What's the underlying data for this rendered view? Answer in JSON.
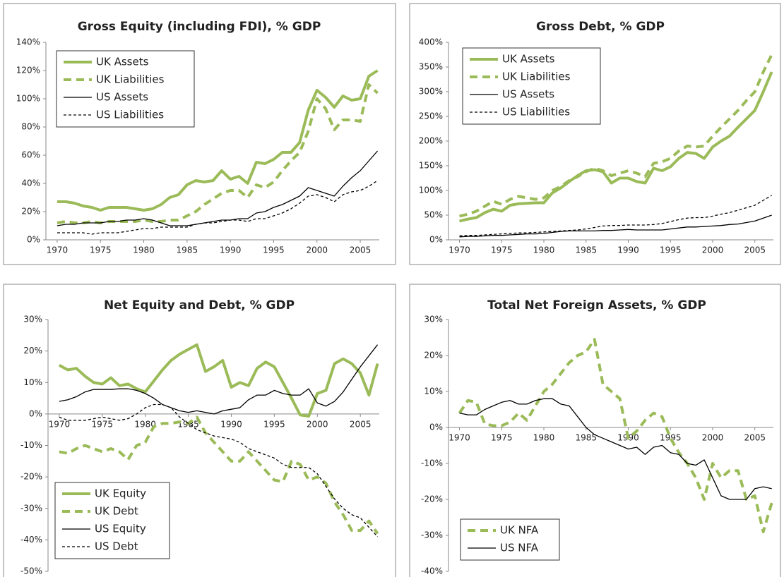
{
  "chart_data": [
    {
      "type": "line",
      "title": "Gross Equity (including FDI), % GDP",
      "x": [
        1970,
        1971,
        1972,
        1973,
        1974,
        1975,
        1976,
        1977,
        1978,
        1979,
        1980,
        1981,
        1982,
        1983,
        1984,
        1985,
        1986,
        1987,
        1988,
        1989,
        1990,
        1991,
        1992,
        1993,
        1994,
        1995,
        1996,
        1997,
        1998,
        1999,
        2000,
        2001,
        2002,
        2003,
        2004,
        2005,
        2006,
        2007
      ],
      "xlim": [
        1968.7,
        2007.2
      ],
      "xticks": [
        1970,
        1975,
        1980,
        1985,
        1990,
        1995,
        2000,
        2005
      ],
      "ylim": [
        0,
        140
      ],
      "yticks": [
        {
          "value": 0,
          "label": "0%"
        },
        {
          "value": 20,
          "label": "20%"
        },
        {
          "value": 40,
          "label": "40%"
        },
        {
          "value": 60,
          "label": "60%"
        },
        {
          "value": 80,
          "label": "80%"
        },
        {
          "value": 100,
          "label": "100%"
        },
        {
          "value": 120,
          "label": "120%"
        },
        {
          "value": 140,
          "label": "140%"
        }
      ],
      "legend": "upper left",
      "series": [
        {
          "name": "UK Assets",
          "color": "#9bbb59",
          "dashed": false,
          "values": [
            27,
            27,
            26,
            24,
            23,
            21,
            23,
            23,
            23,
            22,
            21,
            22,
            25,
            30,
            32,
            39,
            42,
            41,
            42,
            49,
            43,
            45,
            40,
            55,
            54,
            57,
            62,
            62,
            69,
            92,
            106,
            101,
            94,
            102,
            99,
            100,
            116,
            120
          ]
        },
        {
          "name": "UK Liabilities",
          "color": "#9bbb59",
          "dashed": true,
          "values": [
            12,
            13,
            12,
            12,
            13,
            12,
            13,
            13,
            13,
            13,
            14,
            13,
            13,
            14,
            14,
            17,
            20,
            25,
            29,
            33,
            35,
            35,
            30,
            39,
            37,
            41,
            49,
            56,
            62,
            77,
            100,
            93,
            78,
            85,
            85,
            84,
            110,
            104
          ]
        },
        {
          "name": "US Assets",
          "color": "#000000",
          "dashed": false,
          "values": [
            10,
            11,
            11,
            12,
            12,
            12,
            13,
            13,
            14,
            14,
            15,
            14,
            12,
            10,
            10,
            10,
            11,
            12,
            13,
            14,
            14,
            15,
            15,
            19,
            20,
            23,
            25,
            28,
            31,
            37,
            35,
            33,
            31,
            38,
            44,
            49,
            56,
            63
          ]
        },
        {
          "name": "US Liabilities",
          "color": "#000000",
          "dashed": true,
          "values": [
            5,
            5,
            5,
            5,
            4,
            5,
            5,
            5,
            6,
            7,
            8,
            8,
            9,
            9,
            9,
            9,
            11,
            12,
            12,
            13,
            14,
            14,
            13,
            15,
            15,
            17,
            19,
            22,
            26,
            31,
            32,
            30,
            27,
            32,
            34,
            35,
            38,
            42
          ]
        }
      ]
    },
    {
      "type": "line",
      "title": "Gross Debt, % GDP",
      "x": [
        1970,
        1971,
        1972,
        1973,
        1974,
        1975,
        1976,
        1977,
        1978,
        1979,
        1980,
        1981,
        1982,
        1983,
        1984,
        1985,
        1986,
        1987,
        1988,
        1989,
        1990,
        1991,
        1992,
        1993,
        1994,
        1995,
        1996,
        1997,
        1998,
        1999,
        2000,
        2001,
        2002,
        2003,
        2004,
        2005,
        2006,
        2007
      ],
      "xlim": [
        1968.7,
        2007.2
      ],
      "xticks": [
        1970,
        1975,
        1980,
        1985,
        1990,
        1995,
        2000,
        2005
      ],
      "ylim": [
        0,
        400
      ],
      "yticks": [
        {
          "value": 0,
          "label": "0%"
        },
        {
          "value": 50,
          "label": "50%"
        },
        {
          "value": 100,
          "label": "100%"
        },
        {
          "value": 150,
          "label": "150%"
        },
        {
          "value": 200,
          "label": "200%"
        },
        {
          "value": 250,
          "label": "250%"
        },
        {
          "value": 300,
          "label": "300%"
        },
        {
          "value": 350,
          "label": "350%"
        },
        {
          "value": 400,
          "label": "400%"
        }
      ],
      "legend": "upper left",
      "series": [
        {
          "name": "UK Assets",
          "color": "#9bbb59",
          "dashed": false,
          "values": [
            38,
            42,
            45,
            55,
            62,
            58,
            70,
            73,
            74,
            75,
            75,
            95,
            105,
            118,
            130,
            140,
            142,
            138,
            115,
            125,
            125,
            118,
            115,
            145,
            140,
            148,
            165,
            177,
            175,
            165,
            188,
            200,
            210,
            228,
            245,
            262,
            300,
            340
          ]
        },
        {
          "name": "UK Liabilities",
          "color": "#9bbb59",
          "dashed": true,
          "values": [
            48,
            52,
            58,
            68,
            78,
            72,
            82,
            88,
            85,
            82,
            85,
            100,
            108,
            120,
            128,
            138,
            145,
            140,
            130,
            135,
            140,
            135,
            128,
            155,
            158,
            165,
            180,
            190,
            188,
            190,
            210,
            228,
            245,
            262,
            282,
            300,
            340,
            375
          ]
        },
        {
          "name": "US Assets",
          "color": "#000000",
          "dashed": false,
          "values": [
            6,
            7,
            7,
            8,
            9,
            9,
            10,
            11,
            12,
            12,
            13,
            15,
            17,
            18,
            18,
            18,
            18,
            19,
            19,
            20,
            21,
            20,
            20,
            20,
            20,
            22,
            24,
            26,
            26,
            27,
            28,
            29,
            31,
            32,
            35,
            38,
            44,
            50
          ]
        },
        {
          "name": "US Liabilities",
          "color": "#000000",
          "dashed": true,
          "values": [
            8,
            9,
            9,
            10,
            11,
            12,
            13,
            14,
            14,
            15,
            16,
            17,
            18,
            19,
            20,
            22,
            25,
            28,
            29,
            29,
            30,
            30,
            30,
            31,
            33,
            37,
            41,
            44,
            45,
            45,
            48,
            52,
            55,
            60,
            65,
            70,
            80,
            90
          ]
        }
      ]
    },
    {
      "type": "line",
      "title": "Net Equity and Debt, % GDP",
      "x": [
        1970,
        1971,
        1972,
        1973,
        1974,
        1975,
        1976,
        1977,
        1978,
        1979,
        1980,
        1981,
        1982,
        1983,
        1984,
        1985,
        1986,
        1987,
        1988,
        1989,
        1990,
        1991,
        1992,
        1993,
        1994,
        1995,
        1996,
        1997,
        1998,
        1999,
        2000,
        2001,
        2002,
        2003,
        2004,
        2005,
        2006,
        2007
      ],
      "xlim": [
        1968.7,
        2007.2
      ],
      "xticks": [
        1970,
        1975,
        1980,
        1985,
        1990,
        1995,
        2000,
        2005
      ],
      "ylim": [
        -50,
        30
      ],
      "yticks": [
        {
          "value": -50,
          "label": "-50%"
        },
        {
          "value": -40,
          "label": "-40%"
        },
        {
          "value": -30,
          "label": "-30%"
        },
        {
          "value": -20,
          "label": "-20%"
        },
        {
          "value": -10,
          "label": "-10%"
        },
        {
          "value": 0,
          "label": "0%"
        },
        {
          "value": 10,
          "label": "10%"
        },
        {
          "value": 20,
          "label": "20%"
        },
        {
          "value": 30,
          "label": "30%"
        }
      ],
      "legend": "lower left",
      "series": [
        {
          "name": "UK Equity",
          "color": "#9bbb59",
          "dashed": false,
          "values": [
            15.5,
            14,
            14.5,
            12,
            10,
            9.5,
            11.5,
            9,
            9.5,
            8,
            7,
            10.5,
            14,
            17,
            19,
            20.5,
            22,
            13.5,
            15,
            17,
            8.5,
            10,
            9,
            14.5,
            16.5,
            15,
            10,
            5,
            -0.3,
            -0.7,
            6.5,
            7.5,
            16,
            17.5,
            16,
            13,
            6,
            16
          ]
        },
        {
          "name": "UK Debt",
          "color": "#9bbb59",
          "dashed": true,
          "values": [
            -12,
            -12.5,
            -11,
            -10,
            -11,
            -12,
            -11,
            -12,
            -14.5,
            -10,
            -9,
            -4,
            -3,
            -3,
            -2.5,
            -3,
            -1,
            -6,
            -9,
            -12,
            -15,
            -15,
            -12,
            -15,
            -18,
            -21,
            -21.5,
            -15,
            -16,
            -21,
            -20,
            -22,
            -28,
            -32,
            -37,
            -37,
            -34,
            -38
          ]
        },
        {
          "name": "US Equity",
          "color": "#000000",
          "dashed": false,
          "values": [
            4,
            4.5,
            5.5,
            7,
            7.8,
            7.8,
            7.8,
            8,
            8,
            7.5,
            6.5,
            5,
            3,
            2,
            1,
            0.5,
            1,
            0.5,
            0,
            1,
            1.5,
            2,
            4.5,
            6,
            6,
            7.5,
            6.5,
            6,
            6,
            8,
            3.5,
            2.5,
            4,
            7,
            11,
            15,
            18.5,
            22
          ]
        },
        {
          "name": "US Debt",
          "color": "#000000",
          "dashed": true,
          "values": [
            -1,
            -2,
            -2,
            -2,
            -1.5,
            -1,
            -1.5,
            -2,
            -1.5,
            0,
            2,
            3,
            3,
            2,
            -1,
            -3,
            -5,
            -6,
            -7,
            -7.5,
            -8,
            -9,
            -11,
            -12,
            -13,
            -14,
            -16,
            -17,
            -17,
            -17,
            -19,
            -23,
            -27,
            -30,
            -32,
            -33,
            -36,
            -39
          ]
        }
      ]
    },
    {
      "type": "line",
      "title": "Total Net Foreign Assets, % GDP",
      "x": [
        1970,
        1971,
        1972,
        1973,
        1974,
        1975,
        1976,
        1977,
        1978,
        1979,
        1980,
        1981,
        1982,
        1983,
        1984,
        1985,
        1986,
        1987,
        1988,
        1989,
        1990,
        1991,
        1992,
        1993,
        1994,
        1995,
        1996,
        1997,
        1998,
        1999,
        2000,
        2001,
        2002,
        2003,
        2004,
        2005,
        2006,
        2007
      ],
      "xlim": [
        1968.7,
        2007.2
      ],
      "xticks": [
        1970,
        1975,
        1980,
        1985,
        1990,
        1995,
        2000,
        2005
      ],
      "ylim": [
        -40,
        30
      ],
      "yticks": [
        {
          "value": -40,
          "label": "-40%"
        },
        {
          "value": -30,
          "label": "-30%"
        },
        {
          "value": -20,
          "label": "-20%"
        },
        {
          "value": -10,
          "label": "-10%"
        },
        {
          "value": 0,
          "label": "0%"
        },
        {
          "value": 10,
          "label": "10%"
        },
        {
          "value": 20,
          "label": "20%"
        },
        {
          "value": 30,
          "label": "30%"
        }
      ],
      "legend": "lower left",
      "series": [
        {
          "name": "UK NFA",
          "color": "#9bbb59",
          "dashed": true,
          "values": [
            4,
            7.5,
            7,
            1,
            0.5,
            0.5,
            1.5,
            4,
            2,
            6,
            10,
            12,
            15,
            18,
            20,
            21,
            24.5,
            12,
            10,
            8,
            -3,
            -1,
            2,
            4,
            3,
            -3,
            -7,
            -10,
            -14,
            -20,
            -10,
            -14,
            -12,
            -12,
            -20,
            -19,
            -29,
            -21
          ]
        },
        {
          "name": "US NFA",
          "color": "#000000",
          "dashed": false,
          "values": [
            4,
            3.5,
            3.5,
            5,
            6,
            7,
            7.5,
            6.5,
            6.5,
            7.5,
            8,
            8,
            6.5,
            6,
            3,
            0,
            -2,
            -3,
            -4,
            -5,
            -6,
            -5.5,
            -7.5,
            -5.5,
            -5,
            -7,
            -7.5,
            -10,
            -10.5,
            -9,
            -14,
            -19,
            -20,
            -20,
            -20,
            -17,
            -16.5,
            -17
          ]
        }
      ]
    }
  ]
}
